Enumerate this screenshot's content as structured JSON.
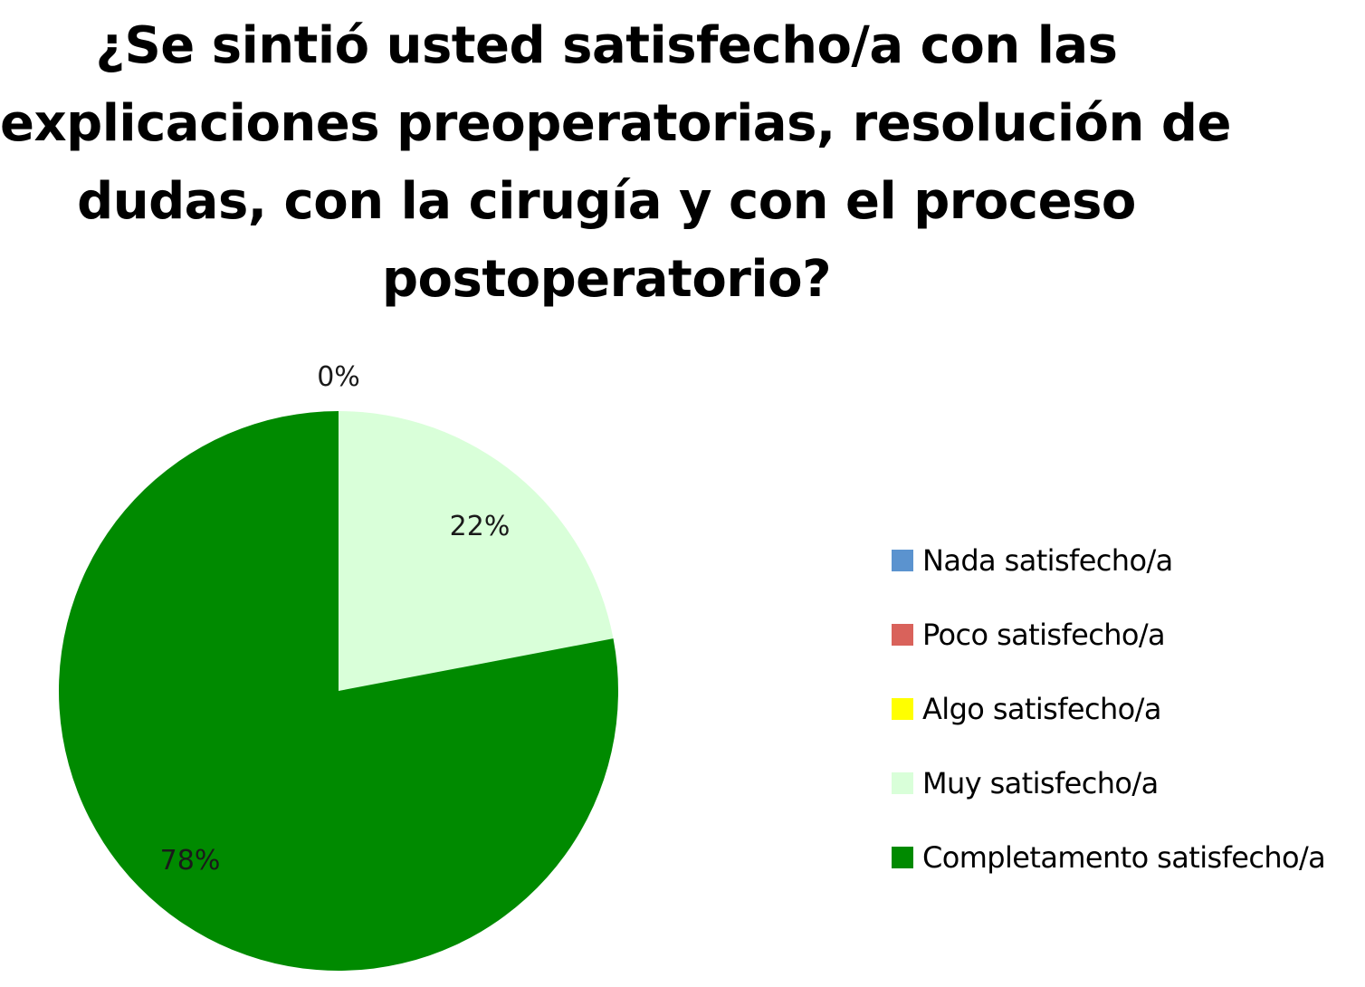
{
  "chart_data": {
    "type": "pie",
    "title_lines": [
      "¿Se sintió usted satisfecho/a con las",
      "explicaciones preoperatorias, resolución de",
      "dudas, con la cirugía y con el proceso",
      "postoperatorio?"
    ],
    "categories": [
      "Nada satisfecho/a",
      "Poco satisfecho/a",
      "Algo satisfecho/a",
      "Muy satisfecho/a",
      "Completamento satisfecho/a"
    ],
    "values": [
      0,
      0,
      0,
      22,
      78
    ],
    "colors": [
      "#5b93cf",
      "#d9625b",
      "#ffff00",
      "#d9ffd9",
      "#008a00"
    ],
    "data_labels": {
      "zero": "0%",
      "muy": "22%",
      "completamento": "78%"
    },
    "legend_position": "right"
  }
}
